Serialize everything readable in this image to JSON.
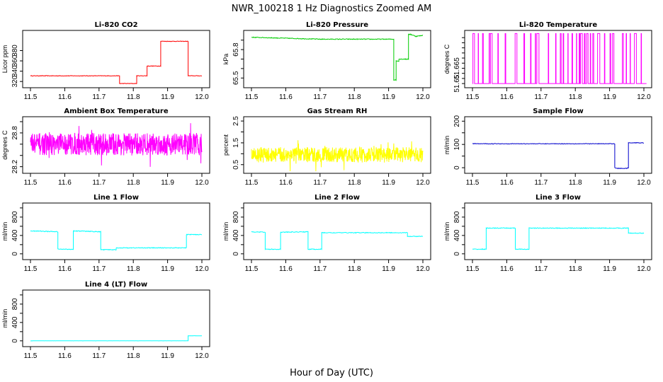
{
  "page": {
    "title": "NWR_100218  1 Hz Diagnostics Zoomed AM",
    "xlabel": "Hour of Day (UTC)"
  },
  "chart_data": [
    {
      "type": "line",
      "title": "Li-820 CO2",
      "ylabel": "Licor ppm",
      "color": "#ff0000",
      "xlim": [
        11.5,
        12.0
      ],
      "ylim": [
        312,
        415
      ],
      "xticks": [
        "11.5",
        "11.6",
        "11.7",
        "11.8",
        "11.9",
        "12.0"
      ],
      "yticks": [
        320,
        340,
        360,
        380
      ],
      "series": [
        {
          "name": "CO2",
          "noise": 0.5,
          "x": [
            11.5,
            11.76,
            11.76,
            11.81,
            11.81,
            11.84,
            11.84,
            11.88,
            11.88,
            11.96,
            11.96,
            12.0
          ],
          "y": [
            331,
            331,
            316,
            316,
            331,
            331,
            350,
            350,
            398,
            398,
            331,
            331
          ]
        }
      ]
    },
    {
      "type": "line",
      "title": "Li-820 Pressure",
      "ylabel": "kPa",
      "color": "#00cc00",
      "xlim": [
        11.5,
        12.0
      ],
      "ylim": [
        65.42,
        65.98
      ],
      "xticks": [
        "11.5",
        "11.6",
        "11.7",
        "11.8",
        "11.9",
        "12.0"
      ],
      "yticks": [
        65.5,
        65.8
      ],
      "yticks_minor": [
        65.5,
        65.6,
        65.7,
        65.8,
        65.9
      ],
      "series": [
        {
          "name": "Pressure",
          "noise": 0.004,
          "x": [
            11.5,
            11.7,
            11.9,
            11.915,
            11.915,
            11.922,
            11.922,
            11.93,
            11.93,
            11.945,
            11.95,
            11.958,
            11.958,
            11.965,
            11.98,
            12.0
          ],
          "y": [
            65.93,
            65.91,
            65.91,
            65.91,
            65.48,
            65.48,
            65.68,
            65.68,
            65.7,
            65.7,
            65.7,
            65.7,
            65.96,
            65.96,
            65.94,
            65.95
          ]
        }
      ]
    },
    {
      "type": "line",
      "title": "Li-820 Temperature",
      "ylabel": "degrees C",
      "color": "#ff00ff",
      "xlim": [
        11.5,
        12.0
      ],
      "ylim": [
        51.648,
        51.7
      ],
      "xticks": [
        "11.5",
        "11.6",
        "11.7",
        "11.8",
        "11.9",
        "12.0"
      ],
      "yticks": [
        51.65,
        51.665
      ],
      "yticks_minor": [
        51.65,
        51.655,
        51.66,
        51.665,
        51.67,
        51.675,
        51.68,
        51.685,
        51.69,
        51.695
      ],
      "series": [
        {
          "name": "Temperature",
          "pattern": "bistable",
          "low": 51.65,
          "high": 51.699
        }
      ]
    },
    {
      "type": "line",
      "title": "Ambient Box Temperature",
      "ylabel": "degrees C",
      "color": "#ff00ff",
      "xlim": [
        11.5,
        12.0
      ],
      "ylim": [
        28.12,
        29.05
      ],
      "xticks": [
        "11.5",
        "11.6",
        "11.7",
        "11.8",
        "11.9",
        "12.0"
      ],
      "yticks": [
        28.2,
        28.8
      ],
      "yticks_minor": [
        28.2,
        28.4,
        28.6,
        28.8,
        29.0
      ],
      "series": [
        {
          "name": "Box Temp",
          "pattern": "noise",
          "mean": 28.6,
          "amp": 0.2,
          "x": [
            11.5,
            12.0
          ],
          "y": [
            28.6,
            28.6
          ]
        }
      ]
    },
    {
      "type": "line",
      "title": "Gas Stream RH",
      "ylabel": "percent",
      "color": "#ffff00",
      "xlim": [
        11.5,
        12.0
      ],
      "ylim": [
        0.2,
        2.6
      ],
      "xticks": [
        "11.5",
        "11.6",
        "11.7",
        "11.8",
        "11.9",
        "12.0"
      ],
      "yticks": [
        0.5,
        1.5,
        2.5
      ],
      "yticks_minor": [
        0.5,
        1.0,
        1.5,
        2.0,
        2.5
      ],
      "series": [
        {
          "name": "RH",
          "pattern": "noise",
          "mean": 0.95,
          "amp": 0.35,
          "x": [
            11.5,
            12.0
          ],
          "y": [
            0.95,
            0.95
          ]
        }
      ]
    },
    {
      "type": "line",
      "title": "Sample Flow",
      "ylabel": "ml/min",
      "color": "#0000cc",
      "xlim": [
        11.5,
        12.0
      ],
      "ylim": [
        -15,
        210
      ],
      "xticks": [
        "11.5",
        "11.6",
        "11.7",
        "11.8",
        "11.9",
        "12.0"
      ],
      "yticks": [
        0,
        100,
        200
      ],
      "yticks_minor": [
        0,
        50,
        100,
        150,
        200
      ],
      "series": [
        {
          "name": "Sample Flow",
          "noise": 1.2,
          "x": [
            11.5,
            11.915,
            11.915,
            11.925,
            11.95,
            11.955,
            11.955,
            12.0
          ],
          "y": [
            103,
            103,
            0,
            -3,
            -3,
            0,
            107,
            107
          ]
        }
      ]
    },
    {
      "type": "line",
      "title": "Line 1 Flow",
      "ylabel": "ml/min",
      "color": "#00ffff",
      "xlim": [
        11.5,
        12.0
      ],
      "ylim": [
        -80,
        1060
      ],
      "xticks": [
        "11.5",
        "11.6",
        "11.7",
        "11.8",
        "11.9",
        "12.0"
      ],
      "yticks": [
        0,
        400,
        800
      ],
      "yticks_minor": [
        0,
        200,
        400,
        600,
        800,
        1000
      ],
      "series": [
        {
          "name": "Line 1",
          "noise": 8,
          "x": [
            11.5,
            11.58,
            11.58,
            11.625,
            11.625,
            11.705,
            11.705,
            11.75,
            11.75,
            11.955,
            11.955,
            12.0
          ],
          "y": [
            500,
            480,
            100,
            100,
            500,
            480,
            90,
            90,
            130,
            130,
            420,
            420
          ]
        }
      ]
    },
    {
      "type": "line",
      "title": "Line 2 Flow",
      "ylabel": "ml/min",
      "color": "#00ffff",
      "xlim": [
        11.5,
        12.0
      ],
      "ylim": [
        -80,
        1060
      ],
      "xticks": [
        "11.5",
        "11.6",
        "11.7",
        "11.8",
        "11.9",
        "12.0"
      ],
      "yticks": [
        0,
        400,
        800
      ],
      "yticks_minor": [
        0,
        200,
        400,
        600,
        800,
        1000
      ],
      "series": [
        {
          "name": "Line 2",
          "noise": 8,
          "x": [
            11.5,
            11.54,
            11.54,
            11.585,
            11.585,
            11.665,
            11.665,
            11.705,
            11.705,
            11.955,
            11.955,
            12.0
          ],
          "y": [
            480,
            470,
            100,
            100,
            470,
            480,
            100,
            100,
            460,
            460,
            380,
            380
          ]
        }
      ]
    },
    {
      "type": "line",
      "title": "Line 3 Flow",
      "ylabel": "ml/min",
      "color": "#00ffff",
      "xlim": [
        11.5,
        12.0
      ],
      "ylim": [
        -80,
        1060
      ],
      "xticks": [
        "11.5",
        "11.6",
        "11.7",
        "11.8",
        "11.9",
        "12.0"
      ],
      "yticks": [
        0,
        400,
        800
      ],
      "yticks_minor": [
        0,
        200,
        400,
        600,
        800,
        1000
      ],
      "series": [
        {
          "name": "Line 3",
          "noise": 8,
          "x": [
            11.5,
            11.54,
            11.54,
            11.625,
            11.625,
            11.665,
            11.665,
            11.955,
            11.955,
            12.0
          ],
          "y": [
            100,
            100,
            560,
            560,
            100,
            100,
            560,
            560,
            450,
            450
          ]
        }
      ]
    },
    {
      "type": "line",
      "title": "Line 4 (LT) Flow",
      "ylabel": "ml/min",
      "color": "#00ffff",
      "xlim": [
        11.5,
        12.0
      ],
      "ylim": [
        -80,
        1060
      ],
      "xticks": [
        "11.5",
        "11.6",
        "11.7",
        "11.8",
        "11.9",
        "12.0"
      ],
      "yticks": [
        0,
        400,
        800
      ],
      "yticks_minor": [
        0,
        200,
        400,
        600,
        800,
        1000
      ],
      "series": [
        {
          "name": "Line 4",
          "noise": 1,
          "x": [
            11.5,
            11.96,
            11.96,
            12.0
          ],
          "y": [
            0,
            0,
            110,
            110
          ]
        }
      ]
    }
  ]
}
